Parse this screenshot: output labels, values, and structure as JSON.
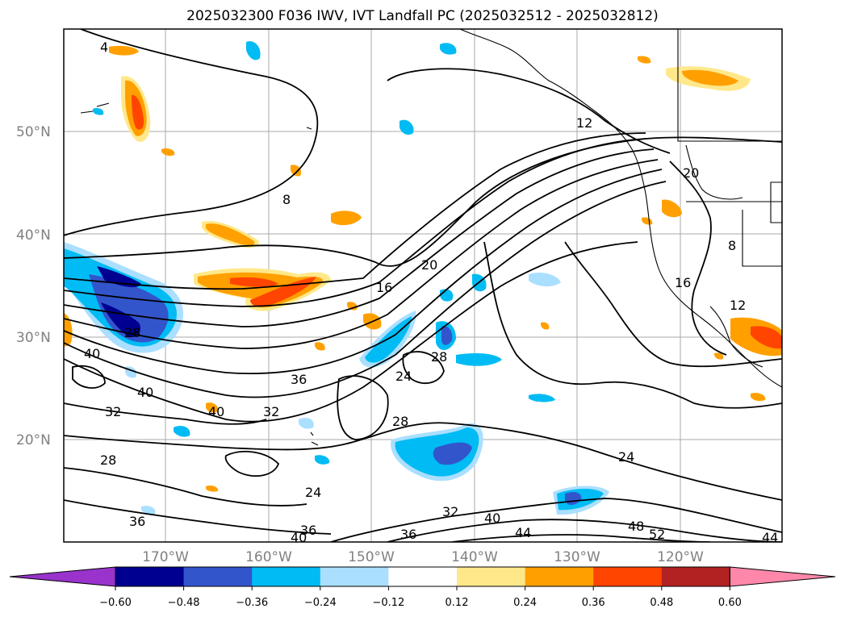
{
  "title": "2025032300 F036 IWV, IVT Landfall PC (2025032512 - 2025032812)",
  "map": {
    "lat_ticks": [
      "50°N",
      "40°N",
      "30°N",
      "20°N"
    ],
    "lon_ticks": [
      "170°W",
      "160°W",
      "150°W",
      "140°W",
      "130°W",
      "120°W"
    ],
    "contour_labels": [
      "4",
      "8",
      "12",
      "16",
      "20",
      "28",
      "40",
      "40",
      "32",
      "40",
      "36",
      "32",
      "24",
      "28",
      "28",
      "28",
      "24",
      "36",
      "36",
      "36",
      "40",
      "32",
      "40",
      "44",
      "48",
      "52",
      "44",
      "24",
      "12",
      "16",
      "8",
      "20"
    ]
  },
  "colorbar": {
    "colors": [
      "#9933cc",
      "#000090",
      "#3355cc",
      "#00bbf4",
      "#aadfff",
      "#ffffff",
      "#ffe88a",
      "#ffa000",
      "#ff4500",
      "#b22222",
      "#ff88aa"
    ],
    "tick_labels": [
      "−0.60",
      "−0.48",
      "−0.36",
      "−0.24",
      "−0.12",
      "0.12",
      "0.24",
      "0.36",
      "0.48",
      "0.60"
    ]
  }
}
